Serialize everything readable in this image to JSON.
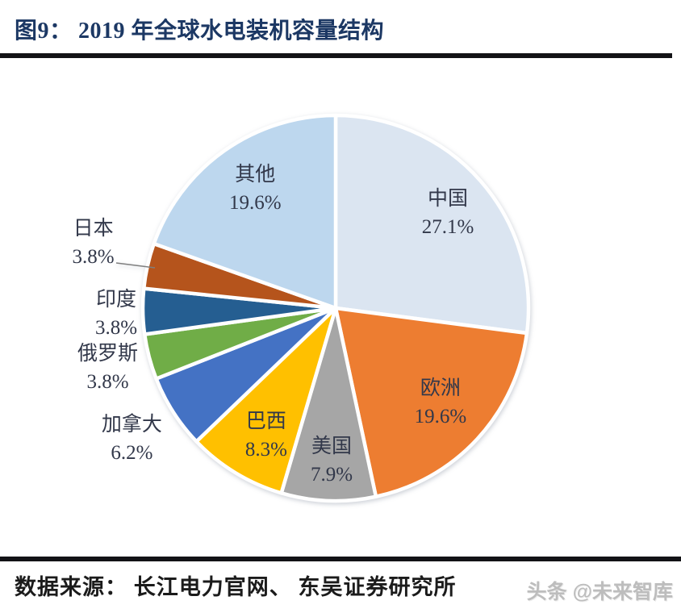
{
  "header": {
    "title": "图9： 2019 年全球水电装机容量结构"
  },
  "chart_data": {
    "type": "pie",
    "title": "2019 年全球水电装机容量结构",
    "start_angle_deg": 0,
    "direction": "clockwise",
    "legend": "none",
    "label_format": "name + percent",
    "slice_border_color": "#ffffff",
    "label_color": "#32384a",
    "series": [
      {
        "id": "china",
        "name": "中国",
        "value": 27.1,
        "color": "#dbe5f1",
        "label_placement": "inside"
      },
      {
        "id": "europe",
        "name": "欧洲",
        "value": 19.6,
        "color": "#ed7d31",
        "label_placement": "inside"
      },
      {
        "id": "usa",
        "name": "美国",
        "value": 7.9,
        "color": "#a6a6a6",
        "label_placement": "inside"
      },
      {
        "id": "brazil",
        "name": "巴西",
        "value": 8.3,
        "color": "#ffc000",
        "label_placement": "inside"
      },
      {
        "id": "canada",
        "name": "加拿大",
        "value": 6.2,
        "color": "#4472c4",
        "label_placement": "outside"
      },
      {
        "id": "russia",
        "name": "俄罗斯",
        "value": 3.8,
        "color": "#70ad47",
        "label_placement": "outside"
      },
      {
        "id": "india",
        "name": "印度",
        "value": 3.8,
        "color": "#255e91",
        "label_placement": "outside"
      },
      {
        "id": "japan",
        "name": "日本",
        "value": 3.8,
        "color": "#b5541c",
        "label_placement": "outside",
        "leader_line": true
      },
      {
        "id": "other",
        "name": "其他",
        "value": 19.6,
        "color": "#bdd7ee",
        "label_placement": "inside"
      }
    ]
  },
  "footer": {
    "source": "数据来源： 长江电力官网、 东吴证券研究所",
    "watermark": "头条 @未来智库"
  }
}
